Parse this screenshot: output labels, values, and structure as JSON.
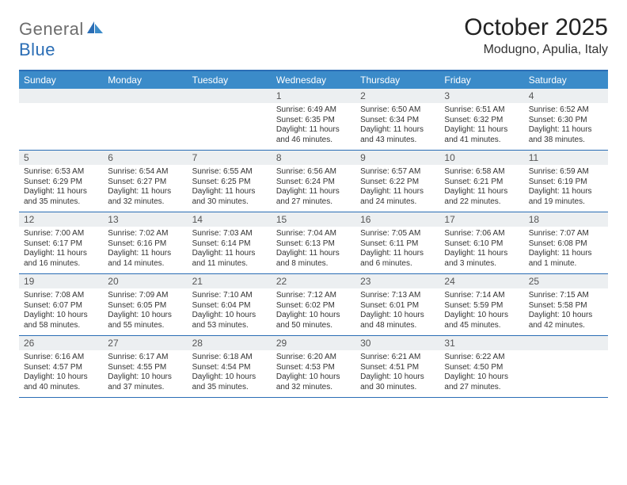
{
  "logo": {
    "part1": "General",
    "part2": "Blue"
  },
  "title": "October 2025",
  "subtitle": "Modugno, Apulia, Italy",
  "colors": {
    "header_bar": "#3b8bc9",
    "rule": "#2a6db5",
    "daynum_bg": "#eceff1",
    "logo_gray": "#6d6d6d",
    "logo_blue": "#2a6db5"
  },
  "day_headers": [
    "Sunday",
    "Monday",
    "Tuesday",
    "Wednesday",
    "Thursday",
    "Friday",
    "Saturday"
  ],
  "weeks": [
    [
      null,
      null,
      null,
      {
        "n": "1",
        "sr": "6:49 AM",
        "ss": "6:35 PM",
        "d1": "Daylight: 11 hours",
        "d2": "and 46 minutes."
      },
      {
        "n": "2",
        "sr": "6:50 AM",
        "ss": "6:34 PM",
        "d1": "Daylight: 11 hours",
        "d2": "and 43 minutes."
      },
      {
        "n": "3",
        "sr": "6:51 AM",
        "ss": "6:32 PM",
        "d1": "Daylight: 11 hours",
        "d2": "and 41 minutes."
      },
      {
        "n": "4",
        "sr": "6:52 AM",
        "ss": "6:30 PM",
        "d1": "Daylight: 11 hours",
        "d2": "and 38 minutes."
      }
    ],
    [
      {
        "n": "5",
        "sr": "6:53 AM",
        "ss": "6:29 PM",
        "d1": "Daylight: 11 hours",
        "d2": "and 35 minutes."
      },
      {
        "n": "6",
        "sr": "6:54 AM",
        "ss": "6:27 PM",
        "d1": "Daylight: 11 hours",
        "d2": "and 32 minutes."
      },
      {
        "n": "7",
        "sr": "6:55 AM",
        "ss": "6:25 PM",
        "d1": "Daylight: 11 hours",
        "d2": "and 30 minutes."
      },
      {
        "n": "8",
        "sr": "6:56 AM",
        "ss": "6:24 PM",
        "d1": "Daylight: 11 hours",
        "d2": "and 27 minutes."
      },
      {
        "n": "9",
        "sr": "6:57 AM",
        "ss": "6:22 PM",
        "d1": "Daylight: 11 hours",
        "d2": "and 24 minutes."
      },
      {
        "n": "10",
        "sr": "6:58 AM",
        "ss": "6:21 PM",
        "d1": "Daylight: 11 hours",
        "d2": "and 22 minutes."
      },
      {
        "n": "11",
        "sr": "6:59 AM",
        "ss": "6:19 PM",
        "d1": "Daylight: 11 hours",
        "d2": "and 19 minutes."
      }
    ],
    [
      {
        "n": "12",
        "sr": "7:00 AM",
        "ss": "6:17 PM",
        "d1": "Daylight: 11 hours",
        "d2": "and 16 minutes."
      },
      {
        "n": "13",
        "sr": "7:02 AM",
        "ss": "6:16 PM",
        "d1": "Daylight: 11 hours",
        "d2": "and 14 minutes."
      },
      {
        "n": "14",
        "sr": "7:03 AM",
        "ss": "6:14 PM",
        "d1": "Daylight: 11 hours",
        "d2": "and 11 minutes."
      },
      {
        "n": "15",
        "sr": "7:04 AM",
        "ss": "6:13 PM",
        "d1": "Daylight: 11 hours",
        "d2": "and 8 minutes."
      },
      {
        "n": "16",
        "sr": "7:05 AM",
        "ss": "6:11 PM",
        "d1": "Daylight: 11 hours",
        "d2": "and 6 minutes."
      },
      {
        "n": "17",
        "sr": "7:06 AM",
        "ss": "6:10 PM",
        "d1": "Daylight: 11 hours",
        "d2": "and 3 minutes."
      },
      {
        "n": "18",
        "sr": "7:07 AM",
        "ss": "6:08 PM",
        "d1": "Daylight: 11 hours",
        "d2": "and 1 minute."
      }
    ],
    [
      {
        "n": "19",
        "sr": "7:08 AM",
        "ss": "6:07 PM",
        "d1": "Daylight: 10 hours",
        "d2": "and 58 minutes."
      },
      {
        "n": "20",
        "sr": "7:09 AM",
        "ss": "6:05 PM",
        "d1": "Daylight: 10 hours",
        "d2": "and 55 minutes."
      },
      {
        "n": "21",
        "sr": "7:10 AM",
        "ss": "6:04 PM",
        "d1": "Daylight: 10 hours",
        "d2": "and 53 minutes."
      },
      {
        "n": "22",
        "sr": "7:12 AM",
        "ss": "6:02 PM",
        "d1": "Daylight: 10 hours",
        "d2": "and 50 minutes."
      },
      {
        "n": "23",
        "sr": "7:13 AM",
        "ss": "6:01 PM",
        "d1": "Daylight: 10 hours",
        "d2": "and 48 minutes."
      },
      {
        "n": "24",
        "sr": "7:14 AM",
        "ss": "5:59 PM",
        "d1": "Daylight: 10 hours",
        "d2": "and 45 minutes."
      },
      {
        "n": "25",
        "sr": "7:15 AM",
        "ss": "5:58 PM",
        "d1": "Daylight: 10 hours",
        "d2": "and 42 minutes."
      }
    ],
    [
      {
        "n": "26",
        "sr": "6:16 AM",
        "ss": "4:57 PM",
        "d1": "Daylight: 10 hours",
        "d2": "and 40 minutes."
      },
      {
        "n": "27",
        "sr": "6:17 AM",
        "ss": "4:55 PM",
        "d1": "Daylight: 10 hours",
        "d2": "and 37 minutes."
      },
      {
        "n": "28",
        "sr": "6:18 AM",
        "ss": "4:54 PM",
        "d1": "Daylight: 10 hours",
        "d2": "and 35 minutes."
      },
      {
        "n": "29",
        "sr": "6:20 AM",
        "ss": "4:53 PM",
        "d1": "Daylight: 10 hours",
        "d2": "and 32 minutes."
      },
      {
        "n": "30",
        "sr": "6:21 AM",
        "ss": "4:51 PM",
        "d1": "Daylight: 10 hours",
        "d2": "and 30 minutes."
      },
      {
        "n": "31",
        "sr": "6:22 AM",
        "ss": "4:50 PM",
        "d1": "Daylight: 10 hours",
        "d2": "and 27 minutes."
      },
      null
    ]
  ],
  "labels": {
    "sunrise": "Sunrise:",
    "sunset": "Sunset:"
  }
}
